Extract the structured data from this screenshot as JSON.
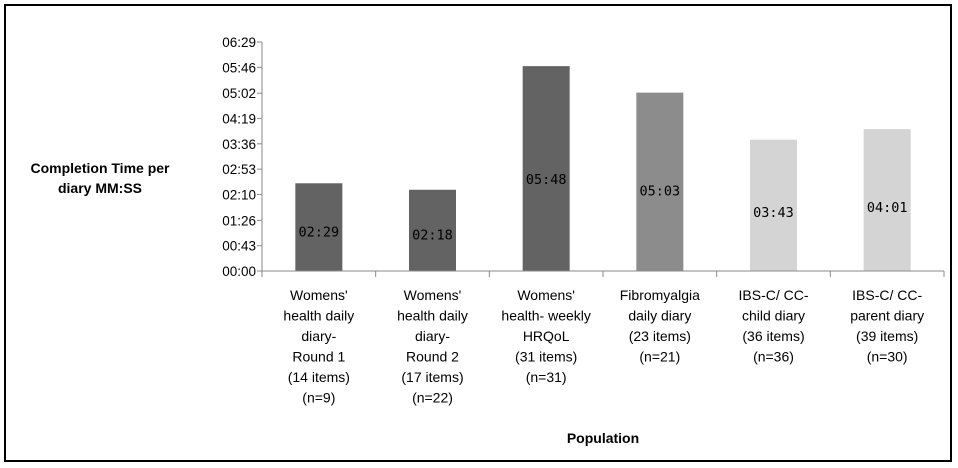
{
  "chart_data": {
    "type": "bar",
    "title": "",
    "ylabel": [
      "Completion Time per",
      "diary MM:SS"
    ],
    "xlabel": "Population",
    "yticks": [
      "00:00",
      "00:43",
      "01:26",
      "02:10",
      "02:53",
      "03:36",
      "04:19",
      "05:02",
      "05:46",
      "06:29"
    ],
    "ytick_seconds": [
      0,
      43,
      86,
      130,
      173,
      216,
      259,
      302,
      346,
      389
    ],
    "ylim_seconds": [
      0,
      389
    ],
    "grid": false,
    "categories": [
      [
        "Womens'",
        "health daily",
        "diary-",
        "Round 1",
        "(14 items)",
        "(n=9)"
      ],
      [
        "Womens'",
        "health daily",
        "diary-",
        "Round 2",
        "(17 items)",
        "(n=22)"
      ],
      [
        "Womens'",
        "health- weekly",
        "HRQoL",
        "(31 items)",
        "(n=31)"
      ],
      [
        "Fibromyalgia",
        "daily diary",
        "(23 items)",
        "(n=21)"
      ],
      [
        "IBS-C/ CC-",
        "child diary",
        "(36 items)",
        "(n=36)"
      ],
      [
        "IBS-C/ CC-",
        "parent diary",
        "(39 items)",
        "(n=30)"
      ]
    ],
    "value_labels": [
      "02:29",
      "02:18",
      "05:48",
      "05:03",
      "03:43",
      "04:01"
    ],
    "values_seconds": [
      149,
      138,
      348,
      303,
      223,
      241
    ],
    "bar_colors": [
      "#636363",
      "#636363",
      "#636363",
      "#8c8c8c",
      "#d4d4d4",
      "#d4d4d4"
    ]
  }
}
